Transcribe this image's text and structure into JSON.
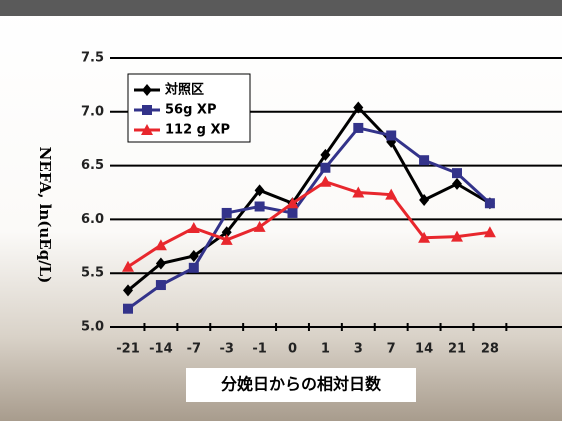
{
  "chart_data": {
    "type": "line",
    "y_label": "NEFA, ln(uEq/L)",
    "x_label": "分娩日からの相対日数",
    "categories": [
      "-21",
      "-14",
      "-7",
      "-3",
      "-1",
      "0",
      "1",
      "3",
      "7",
      "14",
      "21",
      "28"
    ],
    "series": [
      {
        "name": "対照区",
        "color": "#000000",
        "marker": "diamond",
        "values": [
          5.34,
          5.59,
          5.66,
          5.88,
          6.27,
          6.15,
          6.6,
          7.04,
          6.72,
          6.18,
          6.33,
          6.15
        ]
      },
      {
        "name": "56g XP",
        "color": "#33338a",
        "marker": "square",
        "values": [
          5.17,
          5.39,
          5.55,
          6.06,
          6.12,
          6.06,
          6.48,
          6.85,
          6.78,
          6.55,
          6.43,
          6.15
        ]
      },
      {
        "name": "112 g XP",
        "color": "#e8272d",
        "marker": "triangle",
        "values": [
          5.56,
          5.76,
          5.92,
          5.81,
          5.93,
          6.15,
          6.35,
          6.25,
          6.23,
          5.83,
          5.84,
          5.88
        ]
      }
    ],
    "ylim": [
      5,
      7.5
    ],
    "yticks": [
      {
        "value": 5,
        "label": "5.0"
      },
      5.5,
      {
        "value": 6,
        "label": "6.0"
      },
      6.5,
      {
        "value": 7,
        "label": "7.0"
      },
      7.5
    ],
    "grid": true
  }
}
